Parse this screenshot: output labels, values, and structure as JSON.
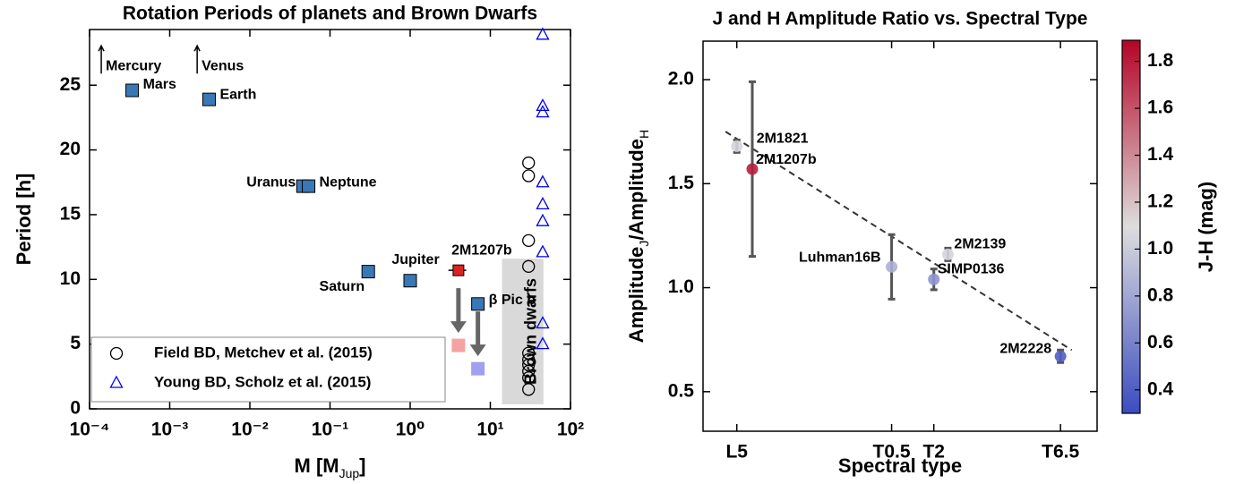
{
  "chart_data": [
    {
      "type": "scatter",
      "title": "Rotation Periods of planets and Brown Dwarfs",
      "xlabel": [
        "M [M",
        "Jup",
        "]"
      ],
      "ylabel": "Period [h]",
      "xscale": "log",
      "xlim": [
        0.0001,
        100
      ],
      "ylim": [
        0,
        29.3
      ],
      "xticks": [
        {
          "value": 0.0001,
          "label": "10⁻⁴"
        },
        {
          "value": 0.001,
          "label": "10⁻³"
        },
        {
          "value": 0.01,
          "label": "10⁻²"
        },
        {
          "value": 0.1,
          "label": "10⁻¹"
        },
        {
          "value": 1,
          "label": "10⁰"
        },
        {
          "value": 10,
          "label": "10¹"
        },
        {
          "value": 100,
          "label": "10²"
        }
      ],
      "yticks": [
        0,
        5,
        10,
        15,
        20,
        25
      ],
      "legend": "lower left",
      "series": [
        {
          "name": "Field BD, Metchev et al. (2015)",
          "marker": "circle",
          "color": "#000000",
          "x": [
            30,
            30,
            30,
            30,
            30,
            30,
            30,
            30,
            30,
            30
          ],
          "values": [
            19,
            18,
            13,
            11,
            4.3,
            3.8,
            3.4,
            2.9,
            2.4,
            1.5
          ]
        },
        {
          "name": "Young BD, Scholz et al. (2015)",
          "marker": "triangle",
          "color": "#0000ee",
          "x": [
            45,
            45,
            45,
            45,
            45,
            45,
            45,
            45,
            45
          ],
          "values": [
            28.9,
            23.4,
            22.9,
            17.5,
            15.8,
            14.5,
            12.1,
            6.6,
            5.0
          ]
        }
      ],
      "planets": {
        "color": "#3a78b5",
        "labels": [
          "Mars",
          "Earth",
          "Uranus",
          "Neptune",
          "Saturn",
          "Jupiter",
          "β Pic b"
        ],
        "x": [
          0.00034,
          0.0031,
          0.046,
          0.054,
          0.3,
          1,
          7
        ],
        "values": [
          24.6,
          23.9,
          17.2,
          17.2,
          10.6,
          9.9,
          8.1
        ]
      },
      "highlight": {
        "label": "2M1207b",
        "x": 4,
        "value": 10.7,
        "xerr": 1,
        "yerr": 0.4,
        "color": "#dd2222"
      },
      "projected": {
        "x": [
          4,
          7
        ],
        "values": [
          4.9,
          3.1
        ],
        "colors": [
          "#f4a3a3",
          "#a0a0f0"
        ]
      },
      "lower_limits": {
        "labels": [
          "Mercury",
          "Venus"
        ],
        "x": [
          0.00014,
          0.0022
        ],
        "values": [
          25.9,
          25.9
        ]
      },
      "region": {
        "label": "Brown dwarfs",
        "xlim": [
          14,
          46
        ],
        "ylim": [
          0.35,
          11.6
        ]
      }
    },
    {
      "type": "scatter",
      "title": "J and H Amplitude Ratio vs. Spectral Type",
      "xlabel": "Spectral type",
      "ylabel": [
        "Amplitude",
        "J",
        "/Amplitude",
        "H"
      ],
      "xlim": [
        13.8,
        27.8
      ],
      "ylim": [
        0.31,
        2.185
      ],
      "xticks": [
        {
          "value": 15,
          "label": "L5"
        },
        {
          "value": 20.5,
          "label": "T0.5"
        },
        {
          "value": 22,
          "label": "T2"
        },
        {
          "value": 26.5,
          "label": "T6.5"
        }
      ],
      "yticks": [
        0.5,
        {
          "value": 1,
          "label": "1.0"
        },
        1.5,
        {
          "value": 2,
          "label": "2.0"
        }
      ],
      "points": {
        "labels": [
          "2M1821",
          "2M1207b",
          "Luhman16B",
          "SIMP0136",
          "2M2139",
          "2M2228"
        ],
        "x": [
          15,
          15.55,
          20.5,
          22,
          22.5,
          26.5
        ],
        "values": [
          1.68,
          1.57,
          1.1,
          1.04,
          1.16,
          0.67
        ],
        "yerr": [
          0.03,
          0.42,
          0.155,
          0.05,
          0.03,
          0.03
        ],
        "jh": [
          1.05,
          1.8,
          0.85,
          0.7,
          1.05,
          0.4
        ]
      },
      "fit": {
        "x": [
          14.6,
          26.9
        ],
        "values": [
          1.75,
          0.7
        ]
      },
      "colorbar": {
        "label": "J-H (mag)",
        "colormap": [
          "#3b4cc0",
          "#dddddd",
          "#b40426"
        ],
        "lim": [
          0.3,
          1.89
        ],
        "ticks": [
          0.4,
          0.6,
          0.8,
          {
            "value": 1,
            "label": "1.0"
          },
          1.2,
          1.4,
          1.6,
          1.8
        ]
      }
    }
  ]
}
